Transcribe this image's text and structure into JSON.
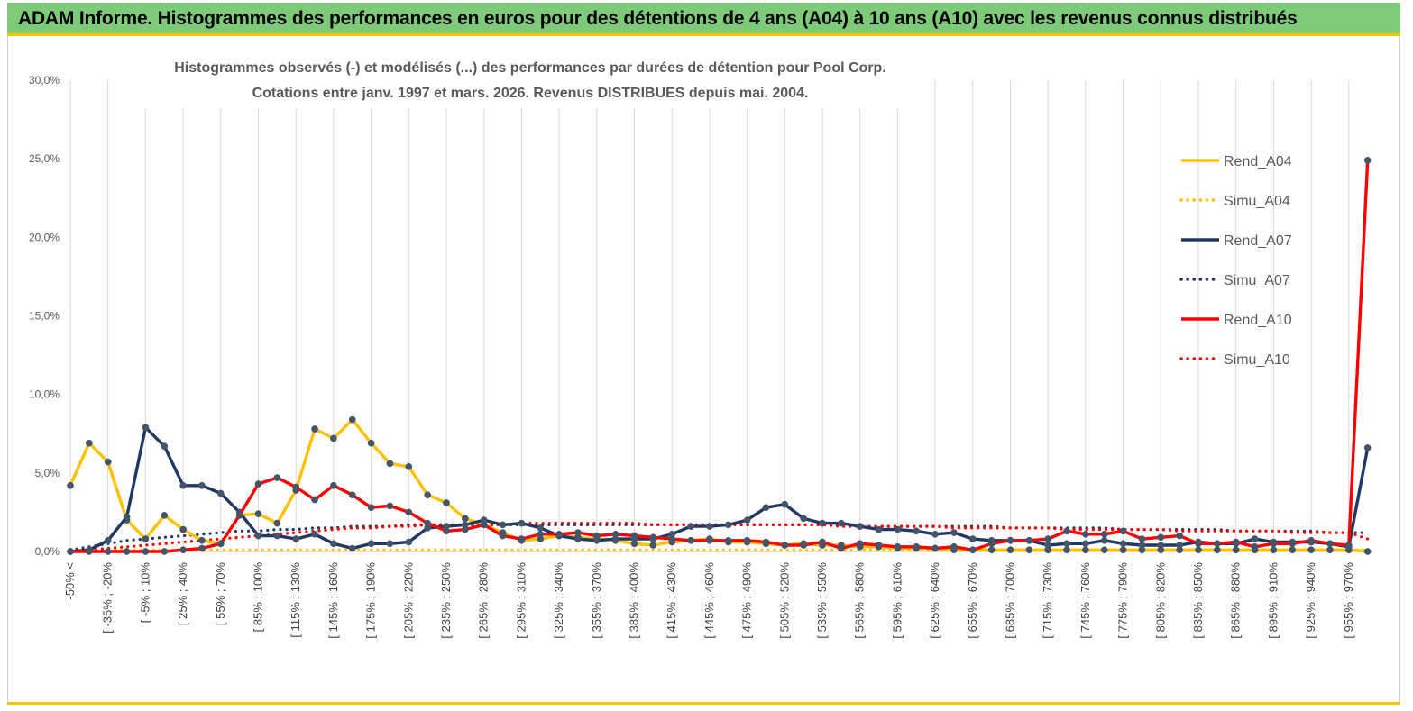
{
  "banner": {
    "title": "ADAM Informe. Histogrammes des performances en euros pour des détentions de 4 ans (A04) à 10 ans (A10) avec les revenus connus distribués"
  },
  "colors": {
    "banner_bg": "#7dcb78",
    "banner_border": "#f6c400",
    "A04": "#ffc000",
    "A07": "#1f3864",
    "A10": "#ff0000",
    "gridline": "#d9d9d9"
  },
  "chart_data": {
    "type": "line",
    "title": "Histogrammes observés (-) et modélisés (...) des performances par durées de détention pour Pool Corp.",
    "subtitle": "Cotations entre janv. 1997 et mars. 2026.  Revenus DISTRIBUES depuis mai. 2004.",
    "ylim": [
      0,
      30
    ],
    "yticks": [
      "0,0%",
      "5,0%",
      "10,0%",
      "15,0%",
      "20,0%",
      "25,0%",
      "30,0%"
    ],
    "grid": "vertical",
    "legend_position": "right",
    "x_tick_labels": [
      "-50% <",
      "[ -35% ; -20%",
      "[ -5% ; 10%",
      "[ 25% ; 40%",
      "[ 55% ; 70%",
      "[ 85% ; 100%",
      "[ 115% ; 130%",
      "[ 145% ; 160%",
      "[ 175% ; 190%",
      "[ 205% ; 220%",
      "[ 235% ; 250%",
      "[ 265% ; 280%",
      "[ 295% ; 310%",
      "[ 325% ; 340%",
      "[ 355% ; 370%",
      "[ 385% ; 400%",
      "[ 415% ; 430%",
      "[ 445% ; 460%",
      "[ 475% ; 490%",
      "[ 505% ; 520%",
      "[ 535% ; 550%",
      "[ 565% ; 580%",
      "[ 595% ; 610%",
      "[ 625% ; 640%",
      "[ 655% ; 670%",
      "[ 685% ; 700%",
      "[ 715% ; 730%",
      "[ 745% ; 760%",
      "[ 775% ; 790%",
      "[ 805% ; 820%",
      "[ 835% ; 850%",
      "[ 865% ; 880%",
      "[ 895% ; 910%",
      "[ 925% ; 940%",
      "[ 955% ; 970%"
    ],
    "n_points": 70,
    "series": [
      {
        "name": "Rend_A04",
        "style": "solid",
        "marker": true,
        "color": "#ffc000",
        "values": [
          4.2,
          6.9,
          5.7,
          2.0,
          0.8,
          2.3,
          1.4,
          0.7,
          0.5,
          2.3,
          2.4,
          1.8,
          3.9,
          7.8,
          7.2,
          8.4,
          6.9,
          5.6,
          5.4,
          3.6,
          3.1,
          2.1,
          1.7,
          1.2,
          0.7,
          0.8,
          1.0,
          0.9,
          0.8,
          0.7,
          0.5,
          0.4,
          0.6,
          0.7,
          0.8,
          0.6,
          0.6,
          0.5,
          0.4,
          0.5,
          0.4,
          0.4,
          0.3,
          0.3,
          0.2,
          0.2,
          0.2,
          0.1,
          0.1,
          0.1,
          0.1,
          0.1,
          0.1,
          0.1,
          0.1,
          0.1,
          0.1,
          0.1,
          0.1,
          0.1,
          0.1,
          0.1,
          0.1,
          0.1,
          0.1,
          0.1,
          0.1,
          0.1,
          0.1,
          0.0
        ]
      },
      {
        "name": "Simu_A04",
        "style": "dotted",
        "marker": false,
        "color": "#ffc000",
        "values": [
          0.1,
          0.1,
          0.1,
          0.1,
          0.1,
          0.1,
          0.1,
          0.1,
          0.1,
          0.1,
          0.1,
          0.1,
          0.1,
          0.1,
          0.1,
          0.1,
          0.1,
          0.1,
          0.1,
          0.1,
          0.1,
          0.1,
          0.1,
          0.1,
          0.1,
          0.1,
          0.1,
          0.1,
          0.1,
          0.1,
          0.1,
          0.1,
          0.1,
          0.1,
          0.1,
          0.1,
          0.1,
          0.1,
          0.1,
          0.1,
          0.1,
          0.1,
          0.1,
          0.1,
          0.1,
          0.1,
          0.1,
          0.1,
          0.1,
          0.1,
          0.1,
          0.1,
          0.1,
          0.1,
          0.1,
          0.1,
          0.1,
          0.1,
          0.1,
          0.1,
          0.1,
          0.1,
          0.1,
          0.1,
          0.1,
          0.1,
          0.1,
          0.1,
          0.1,
          0.1
        ]
      },
      {
        "name": "Rend_A07",
        "style": "solid",
        "marker": true,
        "color": "#1f3864",
        "values": [
          0.0,
          0.1,
          0.7,
          2.2,
          7.9,
          6.7,
          4.2,
          4.2,
          3.7,
          2.5,
          1.0,
          1.0,
          0.8,
          1.1,
          0.5,
          0.2,
          0.5,
          0.5,
          0.6,
          1.5,
          1.6,
          1.7,
          2.0,
          1.7,
          1.8,
          1.5,
          1.0,
          0.8,
          0.7,
          0.8,
          0.8,
          0.8,
          1.1,
          1.6,
          1.6,
          1.7,
          2.0,
          2.8,
          3.0,
          2.1,
          1.8,
          1.8,
          1.6,
          1.4,
          1.4,
          1.3,
          1.1,
          1.2,
          0.8,
          0.7,
          0.7,
          0.7,
          0.4,
          0.5,
          0.5,
          0.7,
          0.5,
          0.4,
          0.4,
          0.4,
          0.6,
          0.5,
          0.5,
          0.8,
          0.6,
          0.6,
          0.6,
          0.5,
          0.3,
          6.6
        ]
      },
      {
        "name": "Simu_A07",
        "style": "dotted",
        "marker": false,
        "color": "#1f3864",
        "values": [
          0.1,
          0.3,
          0.5,
          0.7,
          0.8,
          0.9,
          1.0,
          1.1,
          1.2,
          1.3,
          1.3,
          1.4,
          1.4,
          1.5,
          1.5,
          1.6,
          1.6,
          1.6,
          1.7,
          1.7,
          1.7,
          1.7,
          1.7,
          1.7,
          1.7,
          1.7,
          1.7,
          1.7,
          1.7,
          1.7,
          1.7,
          1.7,
          1.7,
          1.7,
          1.7,
          1.7,
          1.7,
          1.7,
          1.7,
          1.7,
          1.7,
          1.7,
          1.6,
          1.6,
          1.6,
          1.6,
          1.6,
          1.6,
          1.6,
          1.6,
          1.5,
          1.5,
          1.5,
          1.5,
          1.5,
          1.5,
          1.4,
          1.4,
          1.4,
          1.4,
          1.4,
          1.4,
          1.3,
          1.3,
          1.3,
          1.3,
          1.3,
          1.2,
          1.2,
          1.2
        ]
      },
      {
        "name": "Rend_A10",
        "style": "solid",
        "marker": true,
        "color": "#ff0000",
        "values": [
          0.0,
          0.0,
          0.0,
          0.0,
          0.0,
          0.0,
          0.1,
          0.2,
          0.5,
          2.3,
          4.3,
          4.7,
          4.1,
          3.3,
          4.2,
          3.6,
          2.8,
          2.9,
          2.5,
          1.8,
          1.3,
          1.4,
          1.7,
          1.0,
          0.8,
          1.1,
          1.1,
          1.2,
          1.0,
          1.1,
          1.0,
          0.9,
          0.8,
          0.7,
          0.7,
          0.7,
          0.7,
          0.6,
          0.4,
          0.4,
          0.6,
          0.2,
          0.5,
          0.4,
          0.3,
          0.3,
          0.2,
          0.3,
          0.1,
          0.5,
          0.7,
          0.7,
          0.8,
          1.3,
          1.1,
          1.1,
          1.3,
          0.8,
          0.9,
          1.0,
          0.5,
          0.5,
          0.6,
          0.3,
          0.5,
          0.5,
          0.7,
          0.5,
          0.4,
          24.9
        ]
      },
      {
        "name": "Simu_A10",
        "style": "dotted",
        "marker": false,
        "color": "#ff0000",
        "values": [
          0.0,
          0.1,
          0.2,
          0.3,
          0.4,
          0.5,
          0.6,
          0.7,
          0.8,
          0.9,
          1.0,
          1.1,
          1.2,
          1.3,
          1.4,
          1.5,
          1.5,
          1.6,
          1.6,
          1.7,
          1.7,
          1.7,
          1.7,
          1.7,
          1.8,
          1.8,
          1.8,
          1.8,
          1.8,
          1.8,
          1.8,
          1.7,
          1.7,
          1.7,
          1.7,
          1.7,
          1.7,
          1.7,
          1.7,
          1.7,
          1.7,
          1.6,
          1.6,
          1.6,
          1.6,
          1.6,
          1.6,
          1.5,
          1.5,
          1.5,
          1.5,
          1.5,
          1.5,
          1.4,
          1.4,
          1.4,
          1.4,
          1.4,
          1.4,
          1.3,
          1.3,
          1.3,
          1.3,
          1.3,
          1.3,
          1.2,
          1.2,
          1.2,
          1.2,
          0.8
        ]
      }
    ]
  }
}
